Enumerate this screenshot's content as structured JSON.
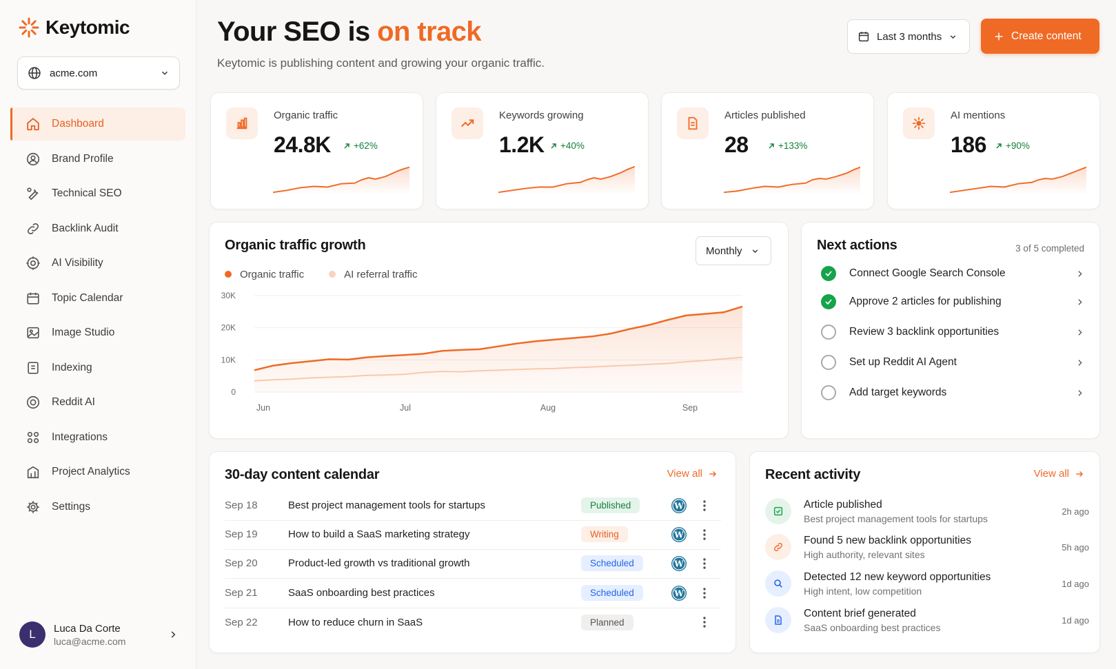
{
  "brand": {
    "name": "Keytomic",
    "accent": "#ef6a25"
  },
  "site_selector": {
    "value": "acme.com",
    "icon": "globe-icon"
  },
  "nav": {
    "items": [
      {
        "label": "Dashboard",
        "icon": "home-icon",
        "active": true
      },
      {
        "label": "Brand Profile",
        "icon": "brand-icon"
      },
      {
        "label": "Technical SEO",
        "icon": "wrench-icon"
      },
      {
        "label": "Backlink Audit",
        "icon": "link-icon"
      },
      {
        "label": "AI Visibility",
        "icon": "target-icon"
      },
      {
        "label": "Topic Calendar",
        "icon": "calendar-icon"
      },
      {
        "label": "Image Studio",
        "icon": "image-icon"
      },
      {
        "label": "Indexing",
        "icon": "index-icon"
      },
      {
        "label": "Reddit AI",
        "icon": "reddit-icon"
      },
      {
        "label": "Integrations",
        "icon": "grid-icon"
      },
      {
        "label": "Project Analytics",
        "icon": "analytics-icon"
      },
      {
        "label": "Settings",
        "icon": "gear-icon"
      }
    ]
  },
  "user": {
    "initial": "L",
    "name": "Luca Da Corte",
    "email": "luca@acme.com"
  },
  "header": {
    "title_prefix": "Your SEO is ",
    "title_accent": "on track",
    "subtitle": "Keytomic is publishing content and growing your organic traffic.",
    "range_label": "Last 3 months",
    "create_label": "Create content"
  },
  "stats": [
    {
      "label": "Organic traffic",
      "value": "24.8K",
      "delta": "+62%",
      "icon": "bar-chart-icon"
    },
    {
      "label": "Keywords growing",
      "value": "1.2K",
      "delta": "+40%",
      "icon": "trend-up-icon"
    },
    {
      "label": "Articles published",
      "value": "28",
      "delta": "+133%",
      "icon": "document-icon"
    },
    {
      "label": "AI mentions",
      "value": "186",
      "delta": "+90%",
      "icon": "sparkle-icon"
    }
  ],
  "traffic_chart": {
    "title": "Organic traffic growth",
    "period_label": "Monthly",
    "legend": [
      "Organic traffic",
      "AI referral traffic"
    ],
    "colors": {
      "organic": "#ef6a25",
      "ai": "#f8c9ad"
    }
  },
  "chart_data": {
    "type": "area",
    "x_ticks": [
      "Jun",
      "Jul",
      "Aug",
      "Sep"
    ],
    "y_ticks": [
      "0",
      "10K",
      "20K",
      "30K"
    ],
    "ylim": [
      0,
      30000
    ],
    "series": [
      {
        "name": "Organic traffic",
        "values": [
          6800,
          8200,
          9000,
          9600,
          10200,
          10100,
          10800,
          11200,
          11500,
          11900,
          12800,
          13100,
          13300,
          14200,
          15100,
          15800,
          16300,
          16800,
          17300,
          18200,
          19600,
          20800,
          22400,
          23800,
          24300,
          24800,
          26600
        ]
      },
      {
        "name": "AI referral traffic",
        "values": [
          3500,
          3800,
          4000,
          4400,
          4600,
          4800,
          5200,
          5300,
          5500,
          6100,
          6400,
          6300,
          6600,
          6800,
          7000,
          7200,
          7300,
          7600,
          7800,
          8100,
          8300,
          8600,
          8900,
          9400,
          9800,
          10300,
          10800
        ]
      }
    ]
  },
  "next_actions": {
    "title": "Next actions",
    "progress": "3 of 5 completed",
    "items": [
      {
        "label": "Connect Google Search Console",
        "done": true
      },
      {
        "label": "Approve 2 articles for publishing",
        "done": true
      },
      {
        "label": "Review 3 backlink opportunities",
        "done": false
      },
      {
        "label": "Set up Reddit AI Agent",
        "done": false
      },
      {
        "label": "Add target keywords",
        "done": false
      }
    ]
  },
  "calendar": {
    "title": "30-day content calendar",
    "view_all": "View all",
    "rows": [
      {
        "date": "Sep 18",
        "title": "Best project management tools for startups",
        "status": "Published",
        "status_color": "#15803d",
        "status_bg": "#e5f4ea",
        "wordpress": true
      },
      {
        "date": "Sep 19",
        "title": "How to build a SaaS marketing strategy",
        "status": "Writing",
        "status_color": "#e4621f",
        "status_bg": "#fdeee6",
        "wordpress": true
      },
      {
        "date": "Sep 20",
        "title": "Product-led growth vs traditional growth",
        "status": "Scheduled",
        "status_color": "#2563eb",
        "status_bg": "#e6efff",
        "wordpress": true
      },
      {
        "date": "Sep 21",
        "title": "SaaS onboarding best practices",
        "status": "Scheduled",
        "status_color": "#2563eb",
        "status_bg": "#e6efff",
        "wordpress": true
      },
      {
        "date": "Sep 22",
        "title": "How to reduce churn in SaaS",
        "status": "Planned",
        "status_color": "#555555",
        "status_bg": "#f0efed",
        "wordpress": false
      }
    ]
  },
  "activity": {
    "title": "Recent activity",
    "view_all": "View all",
    "items": [
      {
        "title": "Article published",
        "subtitle": "Best project management tools for startups",
        "time": "2h ago",
        "icon": "article-icon",
        "color": "#16a34a",
        "bg": "#e5f4ea"
      },
      {
        "title": "Found 5 new backlink opportunities",
        "subtitle": "High authority, relevant sites",
        "time": "5h ago",
        "icon": "link-icon",
        "color": "#ef6a25",
        "bg": "#fdeee6"
      },
      {
        "title": "Detected 12 new keyword opportunities",
        "subtitle": "High intent, low competition",
        "time": "1d ago",
        "icon": "search-icon",
        "color": "#2563eb",
        "bg": "#e6efff"
      },
      {
        "title": "Content brief generated",
        "subtitle": "SaaS onboarding best practices",
        "time": "1d ago",
        "icon": "document-icon",
        "color": "#2563eb",
        "bg": "#e6efff"
      }
    ]
  }
}
